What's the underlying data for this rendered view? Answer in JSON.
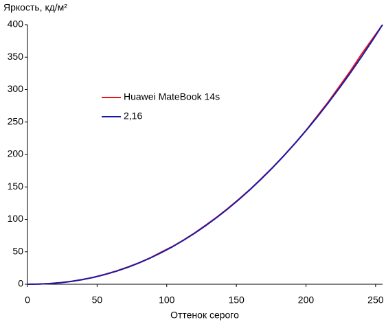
{
  "chart_data": {
    "type": "line",
    "y_label": "Яркость, кд/м²",
    "x_label": "Оттенок серого",
    "x": [
      0,
      8,
      16,
      24,
      32,
      40,
      48,
      56,
      64,
      72,
      80,
      88,
      96,
      104,
      112,
      120,
      128,
      136,
      144,
      152,
      160,
      168,
      176,
      184,
      192,
      200,
      208,
      216,
      224,
      232,
      240,
      248,
      255
    ],
    "series": [
      {
        "name": "Huawei MateBook 14s",
        "color": "#e8141c",
        "values": [
          0,
          0.3,
          1.1,
          2.5,
          4.6,
          7.5,
          11,
          15.5,
          20.5,
          26.5,
          33,
          40.5,
          49.5,
          58,
          68,
          79,
          91,
          103.5,
          117,
          131.5,
          146.5,
          163,
          180,
          198,
          217,
          237,
          259,
          281,
          305,
          329,
          355,
          379,
          400
        ]
      },
      {
        "name": "2,16",
        "color": "#1a1aa8",
        "values": [
          0,
          0.23,
          1.01,
          2.43,
          4.52,
          7.32,
          10.85,
          15.14,
          20.2,
          26.0,
          32.7,
          40.2,
          48.5,
          57.6,
          67.7,
          78.5,
          90.3,
          102.9,
          116.4,
          130.8,
          146.2,
          162.4,
          179.6,
          197.7,
          216.7,
          236.7,
          257.6,
          279.5,
          302.3,
          326.1,
          350.9,
          376.7,
          400
        ]
      }
    ],
    "xlim": [
      0,
      255
    ],
    "ylim": [
      0,
      400
    ],
    "xticks": [
      0,
      50,
      100,
      150,
      200,
      250
    ],
    "yticks": [
      0,
      50,
      100,
      150,
      200,
      250,
      300,
      350,
      400
    ],
    "grid": false
  }
}
